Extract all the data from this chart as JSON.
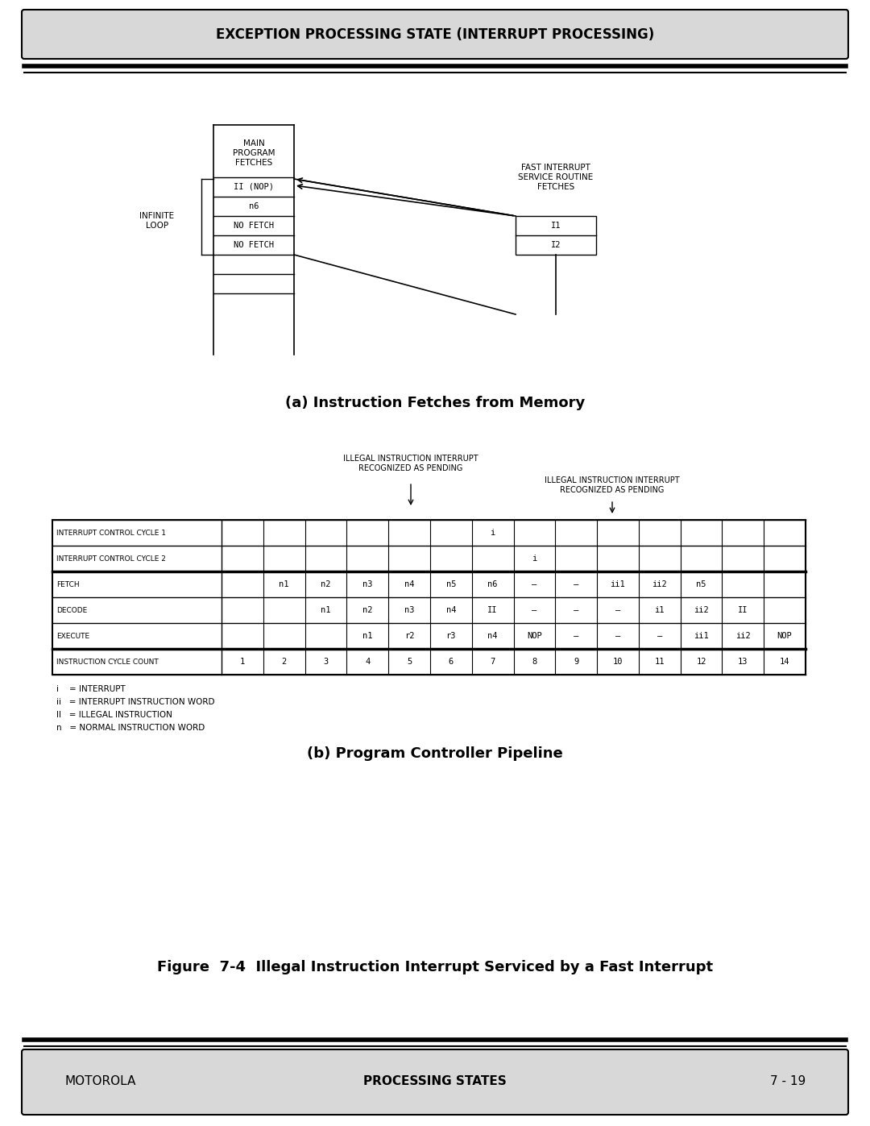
{
  "title_box": "EXCEPTION PROCESSING STATE (INTERRUPT PROCESSING)",
  "subtitle_a": "(a) Instruction Fetches from Memory",
  "subtitle_b": "(b) Program Controller Pipeline",
  "figure_caption": "Figure  7-4  Illegal Instruction Interrupt Serviced by a Fast Interrupt",
  "footer_left": "MOTOROLA",
  "footer_center": "PROCESSING STATES",
  "footer_right": "7 - 19",
  "main_program_label": "MAIN\nPROGRAM\nFETCHES",
  "fast_interrupt_label": "FAST INTERRUPT\nSERVICE ROUTINE\nFETCHES",
  "infinite_loop_label": "INFINITE\nLOOP",
  "left_column_cells": [
    "II (NOP)",
    "n6",
    "NO FETCH",
    "NO FETCH"
  ],
  "right_column_cells": [
    "I1",
    "I2"
  ],
  "arrow_annotation1": "ILLEGAL INSTRUCTION INTERRUPT\nRECOGNIZED AS PENDING",
  "arrow_annotation2": "ILLEGAL INSTRUCTION INTERRUPT\nRECOGNIZED AS PENDING",
  "table_rows": [
    [
      "INTERRUPT CONTROL CYCLE 1",
      "",
      "",
      "",
      "",
      "",
      "",
      "i",
      "",
      "",
      "",
      "",
      "",
      ""
    ],
    [
      "INTERRUPT CONTROL CYCLE 2",
      "",
      "",
      "",
      "",
      "",
      "",
      "",
      "i",
      "",
      "",
      "",
      "",
      ""
    ],
    [
      "FETCH",
      "",
      "n1",
      "n2",
      "n3",
      "n4",
      "n5",
      "n6",
      "—",
      "—",
      "ii1",
      "ii2",
      "n5",
      ""
    ],
    [
      "DECODE",
      "",
      "",
      "n1",
      "n2",
      "n3",
      "n4",
      "II",
      "—",
      "—",
      "—",
      "i1",
      "ii2",
      "II"
    ],
    [
      "EXECUTE",
      "",
      "",
      "",
      "n1",
      "r2",
      "r3",
      "n4",
      "NOP",
      "—",
      "—",
      "—",
      "ii1",
      "ii2",
      "NOP"
    ],
    [
      "INSTRUCTION CYCLE COUNT",
      "1",
      "2",
      "3",
      "4",
      "5",
      "6",
      "7",
      "8",
      "9",
      "10",
      "11",
      "12",
      "13",
      "14"
    ]
  ],
  "legend_lines": [
    "i    = INTERRUPT",
    "ii   = INTERRUPT INSTRUCTION WORD",
    "II   = ILLEGAL INSTRUCTION",
    "n   = NORMAL INSTRUCTION WORD"
  ],
  "bg_color": "#ffffff",
  "box_bg": "#d8d8d8",
  "footer_bg": "#d8d8d8"
}
